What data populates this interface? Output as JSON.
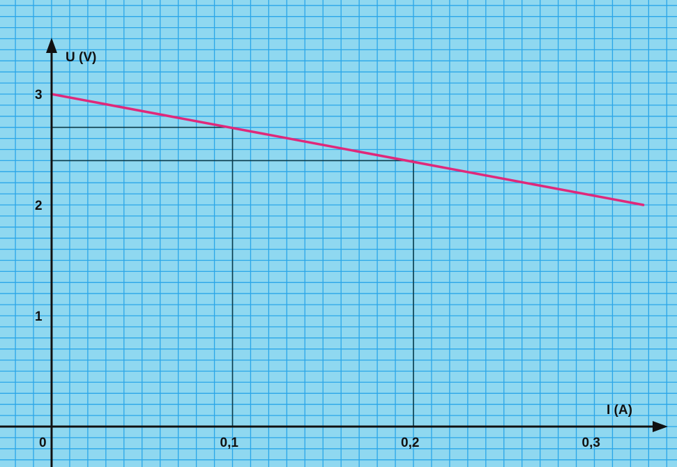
{
  "chart_data": {
    "type": "line",
    "title": "",
    "xlabel": "I (A)",
    "ylabel": "U (V)",
    "xlim": [
      0,
      0.33
    ],
    "ylim": [
      0,
      3.0
    ],
    "x_ticks": [
      {
        "value": 0,
        "label": "0"
      },
      {
        "value": 0.1,
        "label": "0,1"
      },
      {
        "value": 0.2,
        "label": "0,2"
      },
      {
        "value": 0.3,
        "label": "0,3"
      }
    ],
    "y_ticks": [
      {
        "value": 1,
        "label": "1"
      },
      {
        "value": 2,
        "label": "2"
      },
      {
        "value": 3,
        "label": "3"
      }
    ],
    "grid": true,
    "series": [
      {
        "x": [
          0,
          0.327
        ],
        "y": [
          3.0,
          2.0
        ],
        "color": "#e0287a"
      }
    ],
    "reference_points": [
      {
        "x": 0.1,
        "y": 2.7
      },
      {
        "x": 0.2,
        "y": 2.4
      }
    ],
    "colors": {
      "background": "#8fd8f0",
      "grid": "#2aa6e8",
      "axis": "#111111",
      "guide_lines": "#0b3b4a"
    }
  }
}
